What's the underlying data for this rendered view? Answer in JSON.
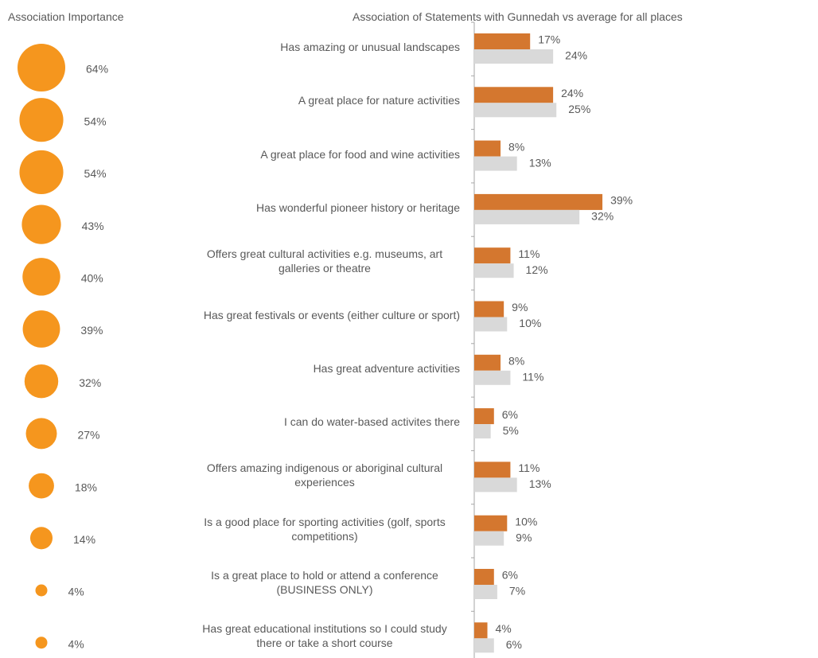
{
  "chart_data": [
    {
      "type": "bubble",
      "title": "Association Importance",
      "color": "#f5961e",
      "values": [
        64,
        54,
        54,
        43,
        40,
        39,
        32,
        27,
        18,
        14,
        4,
        4
      ],
      "value_labels": [
        "64%",
        "54%",
        "54%",
        "43%",
        "40%",
        "39%",
        "32%",
        "27%",
        "18%",
        "14%",
        "4%",
        "4%"
      ]
    },
    {
      "type": "hbar",
      "title": "Association of Statements with Gunnedah vs average for all places",
      "categories": [
        "Has amazing or unusual landscapes",
        "A great place for nature activities",
        "A great place for food and wine activities",
        "Has wonderful pioneer history or heritage",
        "Offers great cultural activities e.g. museums, art galleries or theatre",
        "Has great festivals or events (either culture or sport)",
        "Has great adventure activities",
        "I can do water-based activites there",
        "Offers amazing indigenous or aboriginal cultural experiences",
        "Is a good place for sporting activities (golf, sports competitions)",
        "Is a great place to hold or attend a conference (BUSINESS ONLY)",
        "Has great educational institutions so I could study there or take a short course"
      ],
      "xlim": [
        0,
        100
      ],
      "series": [
        {
          "color": "#d4772f",
          "values": [
            17,
            24,
            8,
            39,
            11,
            9,
            8,
            6,
            11,
            10,
            6,
            4
          ],
          "value_labels": [
            "17%",
            "24%",
            "8%",
            "39%",
            "11%",
            "9%",
            "8%",
            "6%",
            "11%",
            "10%",
            "6%",
            "4%"
          ]
        },
        {
          "color": "#d9d9d9",
          "values": [
            24,
            25,
            13,
            32,
            12,
            10,
            11,
            5,
            13,
            9,
            7,
            6
          ],
          "value_labels": [
            "24%",
            "25%",
            "13%",
            "32%",
            "12%",
            "10%",
            "11%",
            "5%",
            "13%",
            "9%",
            "7%",
            "6%"
          ]
        }
      ]
    }
  ]
}
